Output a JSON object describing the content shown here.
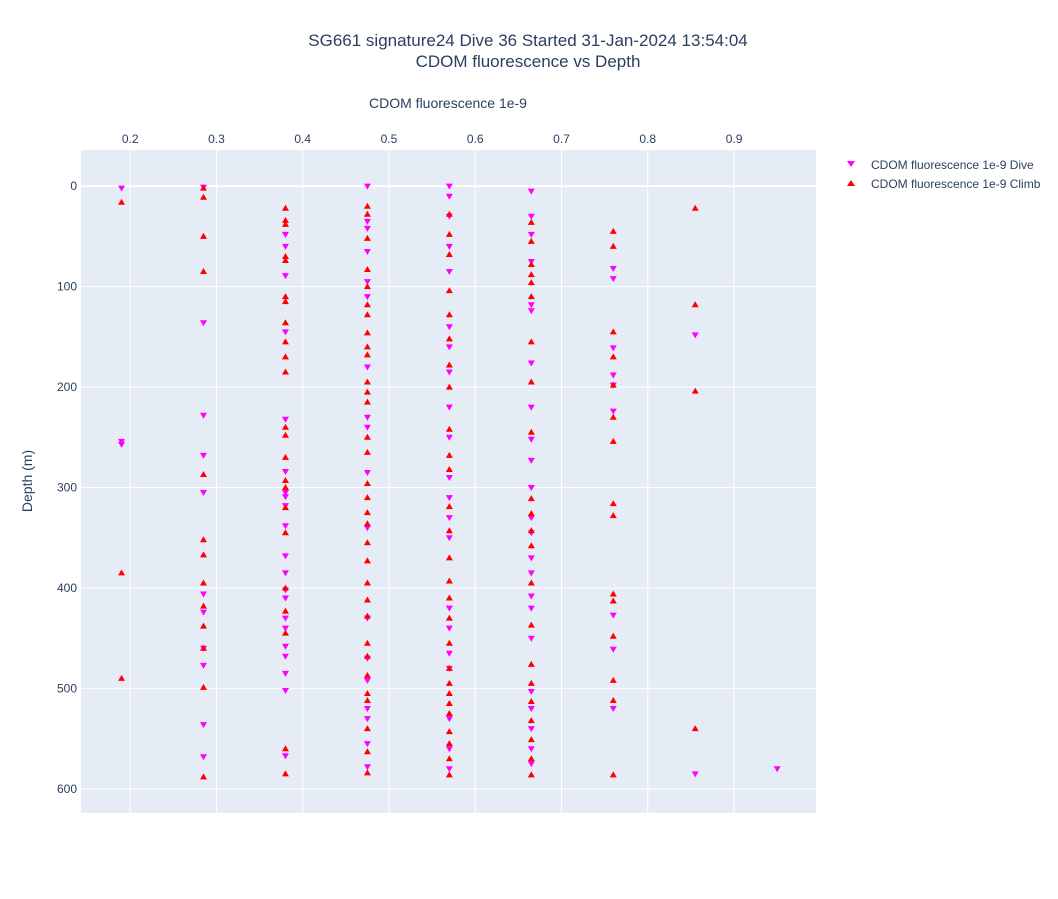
{
  "chart_data": {
    "type": "scatter",
    "title_line1": "SG661 signature24 Dive 36 Started 31-Jan-2024 13:54:04",
    "title_line2": "CDOM fluorescence vs Depth",
    "xlabel": "CDOM fluorescence 1e-9",
    "ylabel": "Depth (m)",
    "x_axis_position": "top",
    "y_axis_reversed": true,
    "xlim": [
      0.143,
      0.995
    ],
    "ylim": [
      -36,
      624
    ],
    "xticks": [
      0.2,
      0.3,
      0.4,
      0.5,
      0.6,
      0.7,
      0.8,
      0.9
    ],
    "yticks": [
      0,
      100,
      200,
      300,
      400,
      500,
      600
    ],
    "grid": true,
    "legend_placement": "top-right outside",
    "colors": {
      "dive": "#ff00ff",
      "climb": "#ff0000",
      "plot_bg": "#e5ecf6",
      "grid": "#ffffff"
    },
    "series": [
      {
        "name": "CDOM fluorescence 1e-9 Dive",
        "marker": "triangle-down",
        "points": [
          [
            0.19,
            2
          ],
          [
            0.19,
            254
          ],
          [
            0.19,
            257
          ],
          [
            0.285,
            1
          ],
          [
            0.285,
            136
          ],
          [
            0.285,
            228
          ],
          [
            0.285,
            268
          ],
          [
            0.285,
            305
          ],
          [
            0.285,
            406
          ],
          [
            0.285,
            424
          ],
          [
            0.285,
            460
          ],
          [
            0.285,
            477
          ],
          [
            0.285,
            536
          ],
          [
            0.285,
            568
          ],
          [
            0.38,
            48
          ],
          [
            0.38,
            60
          ],
          [
            0.38,
            89
          ],
          [
            0.38,
            145
          ],
          [
            0.38,
            232
          ],
          [
            0.38,
            284
          ],
          [
            0.38,
            305
          ],
          [
            0.38,
            309
          ],
          [
            0.38,
            318
          ],
          [
            0.38,
            338
          ],
          [
            0.38,
            368
          ],
          [
            0.38,
            385
          ],
          [
            0.38,
            402
          ],
          [
            0.38,
            410
          ],
          [
            0.38,
            430
          ],
          [
            0.38,
            440
          ],
          [
            0.38,
            458
          ],
          [
            0.38,
            468
          ],
          [
            0.38,
            485
          ],
          [
            0.38,
            502
          ],
          [
            0.38,
            567
          ],
          [
            0.475,
            0
          ],
          [
            0.475,
            35
          ],
          [
            0.475,
            42
          ],
          [
            0.475,
            65
          ],
          [
            0.475,
            95
          ],
          [
            0.475,
            110
          ],
          [
            0.475,
            180
          ],
          [
            0.475,
            230
          ],
          [
            0.475,
            240
          ],
          [
            0.475,
            285
          ],
          [
            0.475,
            340
          ],
          [
            0.475,
            430
          ],
          [
            0.475,
            470
          ],
          [
            0.475,
            492
          ],
          [
            0.475,
            520
          ],
          [
            0.475,
            530
          ],
          [
            0.475,
            555
          ],
          [
            0.475,
            578
          ],
          [
            0.57,
            0
          ],
          [
            0.57,
            10
          ],
          [
            0.57,
            30
          ],
          [
            0.57,
            60
          ],
          [
            0.57,
            85
          ],
          [
            0.57,
            140
          ],
          [
            0.57,
            160
          ],
          [
            0.57,
            185
          ],
          [
            0.57,
            220
          ],
          [
            0.57,
            250
          ],
          [
            0.57,
            290
          ],
          [
            0.57,
            310
          ],
          [
            0.57,
            330
          ],
          [
            0.57,
            350
          ],
          [
            0.57,
            420
          ],
          [
            0.57,
            440
          ],
          [
            0.57,
            465
          ],
          [
            0.57,
            480
          ],
          [
            0.57,
            530
          ],
          [
            0.57,
            560
          ],
          [
            0.57,
            580
          ],
          [
            0.665,
            5
          ],
          [
            0.665,
            30
          ],
          [
            0.665,
            48
          ],
          [
            0.665,
            75
          ],
          [
            0.665,
            118
          ],
          [
            0.665,
            124
          ],
          [
            0.665,
            176
          ],
          [
            0.665,
            220
          ],
          [
            0.665,
            252
          ],
          [
            0.665,
            273
          ],
          [
            0.665,
            300
          ],
          [
            0.665,
            330
          ],
          [
            0.665,
            345
          ],
          [
            0.665,
            370
          ],
          [
            0.665,
            385
          ],
          [
            0.665,
            408
          ],
          [
            0.665,
            420
          ],
          [
            0.665,
            450
          ],
          [
            0.665,
            503
          ],
          [
            0.665,
            520
          ],
          [
            0.665,
            540
          ],
          [
            0.665,
            560
          ],
          [
            0.665,
            575
          ],
          [
            0.76,
            82
          ],
          [
            0.76,
            92
          ],
          [
            0.76,
            161
          ],
          [
            0.76,
            188
          ],
          [
            0.76,
            198
          ],
          [
            0.76,
            224
          ],
          [
            0.76,
            427
          ],
          [
            0.76,
            461
          ],
          [
            0.76,
            520
          ],
          [
            0.855,
            148
          ],
          [
            0.855,
            585
          ],
          [
            0.95,
            580
          ]
        ]
      },
      {
        "name": "CDOM fluorescence 1e-9 Climb",
        "marker": "triangle-up",
        "points": [
          [
            0.19,
            16
          ],
          [
            0.19,
            385
          ],
          [
            0.19,
            490
          ],
          [
            0.285,
            2
          ],
          [
            0.285,
            11
          ],
          [
            0.285,
            50
          ],
          [
            0.285,
            85
          ],
          [
            0.285,
            287
          ],
          [
            0.285,
            352
          ],
          [
            0.285,
            367
          ],
          [
            0.285,
            395
          ],
          [
            0.285,
            418
          ],
          [
            0.285,
            438
          ],
          [
            0.285,
            460
          ],
          [
            0.285,
            499
          ],
          [
            0.285,
            588
          ],
          [
            0.38,
            22
          ],
          [
            0.38,
            34
          ],
          [
            0.38,
            38
          ],
          [
            0.38,
            70
          ],
          [
            0.38,
            74
          ],
          [
            0.38,
            110
          ],
          [
            0.38,
            115
          ],
          [
            0.38,
            136
          ],
          [
            0.38,
            155
          ],
          [
            0.38,
            170
          ],
          [
            0.38,
            185
          ],
          [
            0.38,
            240
          ],
          [
            0.38,
            248
          ],
          [
            0.38,
            270
          ],
          [
            0.38,
            293
          ],
          [
            0.38,
            300
          ],
          [
            0.38,
            320
          ],
          [
            0.38,
            345
          ],
          [
            0.38,
            400
          ],
          [
            0.38,
            423
          ],
          [
            0.38,
            445
          ],
          [
            0.38,
            560
          ],
          [
            0.38,
            585
          ],
          [
            0.475,
            20
          ],
          [
            0.475,
            28
          ],
          [
            0.475,
            52
          ],
          [
            0.475,
            83
          ],
          [
            0.475,
            100
          ],
          [
            0.475,
            118
          ],
          [
            0.475,
            128
          ],
          [
            0.475,
            146
          ],
          [
            0.475,
            160
          ],
          [
            0.475,
            168
          ],
          [
            0.475,
            195
          ],
          [
            0.475,
            205
          ],
          [
            0.475,
            215
          ],
          [
            0.475,
            250
          ],
          [
            0.475,
            265
          ],
          [
            0.475,
            296
          ],
          [
            0.475,
            310
          ],
          [
            0.475,
            325
          ],
          [
            0.475,
            336
          ],
          [
            0.475,
            355
          ],
          [
            0.475,
            373
          ],
          [
            0.475,
            395
          ],
          [
            0.475,
            412
          ],
          [
            0.475,
            428
          ],
          [
            0.475,
            455
          ],
          [
            0.475,
            468
          ],
          [
            0.475,
            487
          ],
          [
            0.475,
            505
          ],
          [
            0.475,
            512
          ],
          [
            0.475,
            540
          ],
          [
            0.475,
            563
          ],
          [
            0.475,
            584
          ],
          [
            0.57,
            28
          ],
          [
            0.57,
            48
          ],
          [
            0.57,
            68
          ],
          [
            0.57,
            104
          ],
          [
            0.57,
            128
          ],
          [
            0.57,
            152
          ],
          [
            0.57,
            178
          ],
          [
            0.57,
            200
          ],
          [
            0.57,
            242
          ],
          [
            0.57,
            268
          ],
          [
            0.57,
            282
          ],
          [
            0.57,
            319
          ],
          [
            0.57,
            343
          ],
          [
            0.57,
            370
          ],
          [
            0.57,
            393
          ],
          [
            0.57,
            410
          ],
          [
            0.57,
            430
          ],
          [
            0.57,
            455
          ],
          [
            0.57,
            480
          ],
          [
            0.57,
            495
          ],
          [
            0.57,
            505
          ],
          [
            0.57,
            515
          ],
          [
            0.57,
            525
          ],
          [
            0.57,
            543
          ],
          [
            0.57,
            555
          ],
          [
            0.57,
            570
          ],
          [
            0.57,
            586
          ],
          [
            0.665,
            36
          ],
          [
            0.665,
            55
          ],
          [
            0.665,
            78
          ],
          [
            0.665,
            88
          ],
          [
            0.665,
            96
          ],
          [
            0.665,
            110
          ],
          [
            0.665,
            155
          ],
          [
            0.665,
            195
          ],
          [
            0.665,
            245
          ],
          [
            0.665,
            311
          ],
          [
            0.665,
            326
          ],
          [
            0.665,
            343
          ],
          [
            0.665,
            358
          ],
          [
            0.665,
            395
          ],
          [
            0.665,
            437
          ],
          [
            0.665,
            476
          ],
          [
            0.665,
            495
          ],
          [
            0.665,
            513
          ],
          [
            0.665,
            532
          ],
          [
            0.665,
            551
          ],
          [
            0.665,
            570
          ],
          [
            0.665,
            586
          ],
          [
            0.76,
            45
          ],
          [
            0.76,
            60
          ],
          [
            0.76,
            145
          ],
          [
            0.76,
            170
          ],
          [
            0.76,
            198
          ],
          [
            0.76,
            230
          ],
          [
            0.76,
            254
          ],
          [
            0.76,
            316
          ],
          [
            0.76,
            328
          ],
          [
            0.76,
            406
          ],
          [
            0.76,
            413
          ],
          [
            0.76,
            448
          ],
          [
            0.76,
            492
          ],
          [
            0.76,
            512
          ],
          [
            0.76,
            586
          ],
          [
            0.855,
            22
          ],
          [
            0.855,
            118
          ],
          [
            0.855,
            204
          ],
          [
            0.855,
            540
          ]
        ]
      }
    ]
  }
}
